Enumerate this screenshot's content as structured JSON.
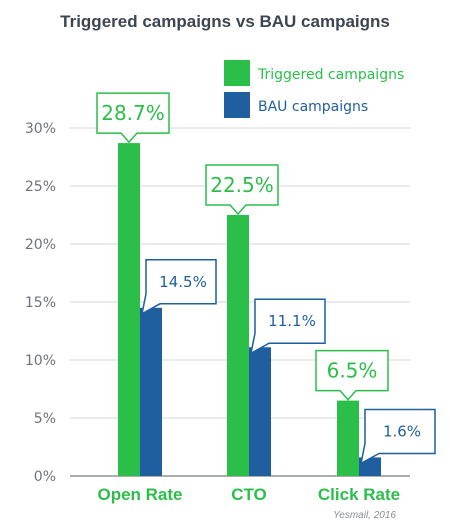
{
  "chart_data": {
    "type": "bar",
    "title": "Triggered campaigns vs BAU campaigns",
    "categories": [
      "Open Rate",
      "CTO",
      "Click Rate"
    ],
    "series": [
      {
        "name": "Triggered campaigns",
        "values": [
          28.7,
          22.5,
          6.5
        ],
        "labels": [
          "28.7%",
          "22.5%",
          "6.5%"
        ],
        "color": "#2bbf4a"
      },
      {
        "name": "BAU campaigns",
        "values": [
          14.5,
          11.1,
          1.6
        ],
        "labels": [
          "14.5%",
          "11.1%",
          "1.6%"
        ],
        "color": "#1f5f9f"
      }
    ],
    "y_ticks": [
      {
        "value": 0,
        "label": "0%"
      },
      {
        "value": 5,
        "label": "5%"
      },
      {
        "value": 10,
        "label": "10%"
      },
      {
        "value": 15,
        "label": "15%"
      },
      {
        "value": 20,
        "label": "20%"
      },
      {
        "value": 25,
        "label": "25%"
      },
      {
        "value": 30,
        "label": "30%"
      }
    ],
    "ylim": [
      0,
      30
    ],
    "grid": true,
    "legend_position": "top-right",
    "source": "Yesmail, 2016"
  }
}
